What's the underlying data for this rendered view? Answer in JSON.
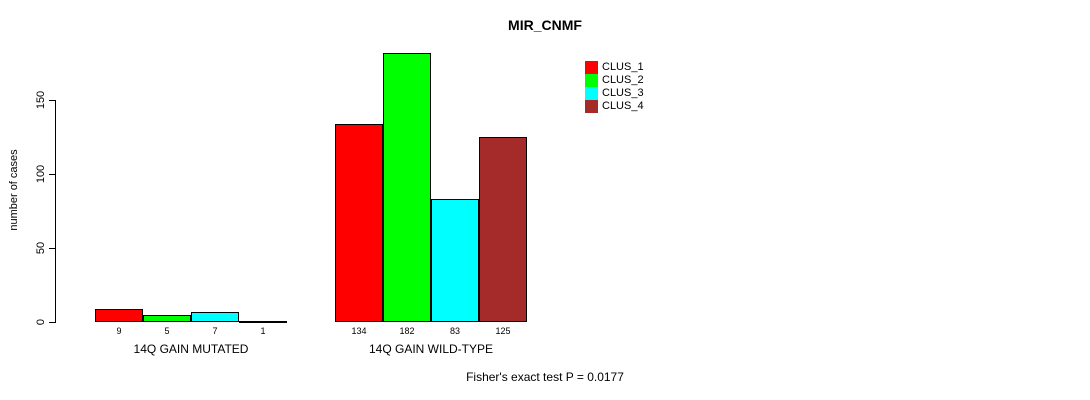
{
  "chart_data": {
    "type": "bar",
    "title": "MIR_CNMF",
    "xlabel": "",
    "ylabel": "number of cases",
    "categories": [
      "14Q GAIN MUTATED",
      "14Q GAIN WILD-TYPE"
    ],
    "series": [
      {
        "name": "CLUS_1",
        "color": "#ff0000",
        "values": [
          9,
          134
        ]
      },
      {
        "name": "CLUS_2",
        "color": "#00ff00",
        "values": [
          5,
          182
        ]
      },
      {
        "name": "CLUS_3",
        "color": "#00ffff",
        "values": [
          7,
          83
        ]
      },
      {
        "name": "CLUS_4",
        "color": "#a52a2a",
        "values": [
          1,
          125
        ]
      }
    ],
    "yticks": [
      0,
      50,
      100,
      150
    ],
    "ylim": [
      0,
      190
    ],
    "grid": false,
    "legend_position": "top-right",
    "bar_value_labels": [
      [
        9,
        5,
        7,
        1
      ],
      [
        134,
        182,
        83,
        125
      ]
    ],
    "annotation": "Fisher's exact test P = 0.0177"
  }
}
